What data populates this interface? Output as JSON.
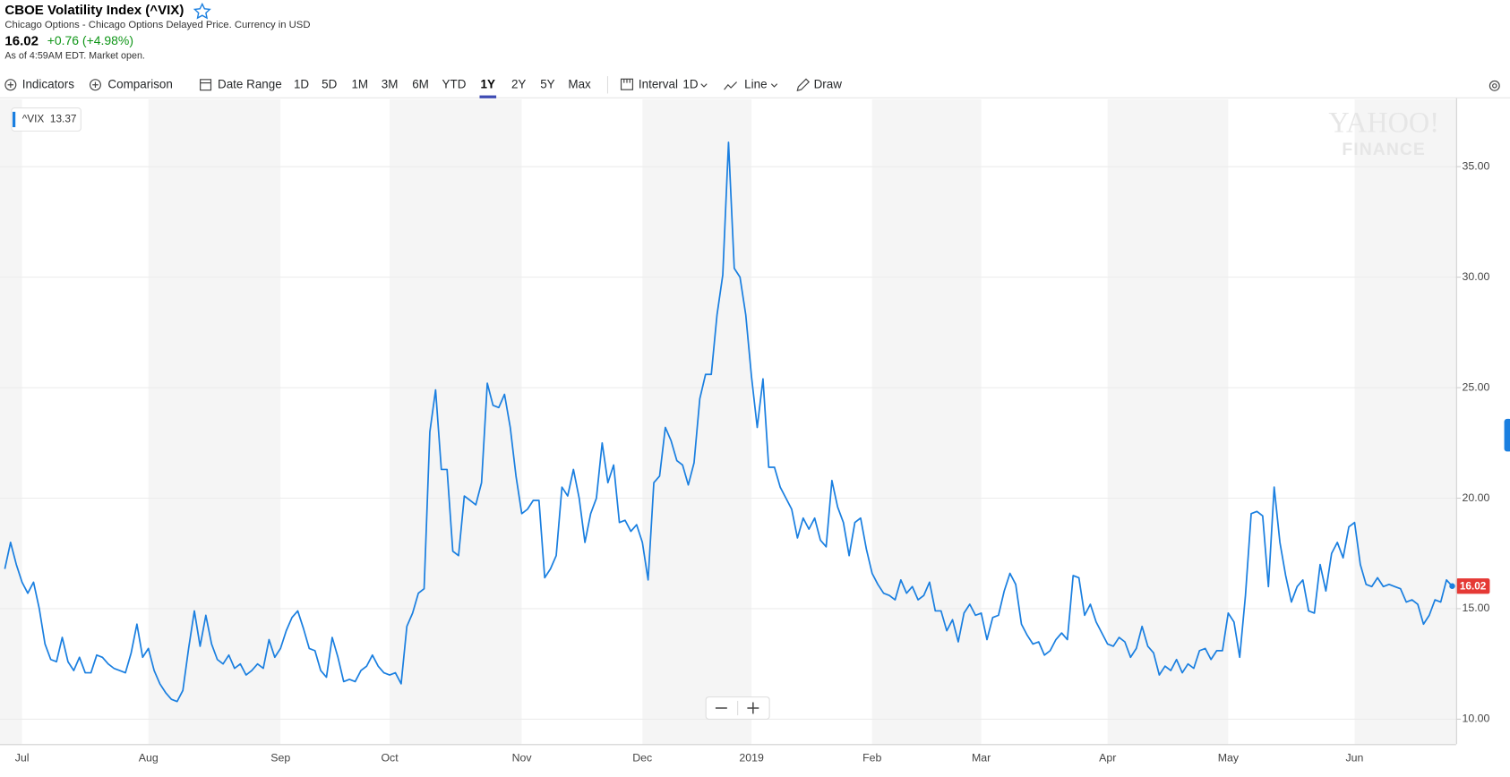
{
  "header": {
    "title": "CBOE Volatility Index (^VIX)",
    "subtitle": "Chicago Options - Chicago Options Delayed Price. Currency in USD",
    "price": "16.02",
    "change": "+0.76 (+4.98%)",
    "as_of": "As of 4:59AM EDT. Market open."
  },
  "toolbar": {
    "indicators": "Indicators",
    "comparison": "Comparison",
    "date_range": "Date Range",
    "ranges": [
      "1D",
      "5D",
      "1M",
      "3M",
      "6M",
      "YTD",
      "1Y",
      "2Y",
      "5Y",
      "Max"
    ],
    "selected": "1Y",
    "interval": "Interval",
    "interval_value": "1D",
    "line": "Line",
    "draw": "Draw"
  },
  "watermark": [
    "YAHOO!",
    "FINANCE"
  ],
  "chart_data": {
    "type": "line",
    "categories": [
      null,
      null,
      null,
      "Jul",
      null,
      null,
      null,
      null,
      null,
      null,
      null,
      null,
      null,
      null,
      null,
      null,
      null,
      null,
      null,
      null,
      null,
      null,
      null,
      null,
      null,
      "Aug",
      null,
      null,
      null,
      null,
      null,
      null,
      null,
      null,
      null,
      null,
      null,
      null,
      null,
      null,
      null,
      null,
      null,
      null,
      null,
      null,
      null,
      null,
      "Sep",
      null,
      null,
      null,
      null,
      null,
      null,
      null,
      null,
      null,
      null,
      null,
      null,
      null,
      null,
      null,
      null,
      null,
      null,
      "Oct",
      null,
      null,
      null,
      null,
      null,
      null,
      null,
      null,
      null,
      null,
      null,
      null,
      null,
      null,
      null,
      null,
      null,
      null,
      null,
      null,
      null,
      null,
      "Nov",
      null,
      null,
      null,
      null,
      null,
      null,
      null,
      null,
      null,
      null,
      null,
      null,
      null,
      null,
      null,
      null,
      null,
      null,
      null,
      null,
      "Dec",
      null,
      null,
      null,
      null,
      null,
      null,
      null,
      null,
      null,
      null,
      null,
      null,
      null,
      null,
      null,
      null,
      null,
      null,
      "2019",
      null,
      null,
      null,
      null,
      null,
      null,
      null,
      null,
      null,
      null,
      null,
      null,
      null,
      null,
      null,
      null,
      null,
      null,
      null,
      null,
      "Feb",
      null,
      null,
      null,
      null,
      null,
      null,
      null,
      null,
      null,
      null,
      null,
      null,
      null,
      null,
      null,
      null,
      null,
      null,
      "Mar",
      null,
      null,
      null,
      null,
      null,
      null,
      null,
      null,
      null,
      null,
      null,
      null,
      null,
      null,
      null,
      null,
      null,
      null,
      null,
      null,
      null,
      "Apr",
      null,
      null,
      null,
      null,
      null,
      null,
      null,
      null,
      null,
      null,
      null,
      null,
      null,
      null,
      null,
      null,
      null,
      null,
      null,
      null,
      "May",
      null,
      null,
      null,
      null,
      null,
      null,
      null,
      null,
      null,
      null,
      null,
      null,
      null,
      null,
      null,
      null,
      null,
      null,
      null,
      null,
      null,
      "Jun",
      null,
      null,
      null,
      null,
      null,
      null,
      null,
      null,
      null,
      null,
      null,
      null,
      null,
      null,
      null,
      null,
      null
    ],
    "series": [
      {
        "name": "^VIX",
        "color": "#1a7fe0",
        "values": [
          16.8,
          18.0,
          17.0,
          16.2,
          15.7,
          16.2,
          15.0,
          13.4,
          12.7,
          12.6,
          13.7,
          12.6,
          12.2,
          12.8,
          12.1,
          12.1,
          12.9,
          12.8,
          12.5,
          12.3,
          12.2,
          12.1,
          13.0,
          14.3,
          12.8,
          13.2,
          12.2,
          11.6,
          11.2,
          10.9,
          10.8,
          11.3,
          13.2,
          14.9,
          13.3,
          14.7,
          13.4,
          12.7,
          12.5,
          12.9,
          12.3,
          12.5,
          12.0,
          12.2,
          12.5,
          12.3,
          13.6,
          12.8,
          13.2,
          14.0,
          14.6,
          14.9,
          14.1,
          13.2,
          13.1,
          12.2,
          11.9,
          13.7,
          12.8,
          11.7,
          11.8,
          11.7,
          12.2,
          12.4,
          12.9,
          12.4,
          12.1,
          12.0,
          12.1,
          11.6,
          14.2,
          14.8,
          15.7,
          15.9,
          23.0,
          24.9,
          21.3,
          21.3,
          17.6,
          17.4,
          20.1,
          19.9,
          19.7,
          20.7,
          25.2,
          24.2,
          24.1,
          24.7,
          23.2,
          21.0,
          19.3,
          19.5,
          19.9,
          19.9,
          16.4,
          16.8,
          17.4,
          20.5,
          20.1,
          21.3,
          20.0,
          18.0,
          19.3,
          20.0,
          22.5,
          20.7,
          21.5,
          18.9,
          19.0,
          18.5,
          18.8,
          18.0,
          16.3,
          20.7,
          21.0,
          23.2,
          22.6,
          21.7,
          21.5,
          20.6,
          21.6,
          24.5,
          25.6,
          25.6,
          28.3,
          30.1,
          36.1,
          30.4,
          30.0,
          28.3,
          25.5,
          23.2,
          25.4,
          21.4,
          21.4,
          20.5,
          20.0,
          19.5,
          18.2,
          19.1,
          18.6,
          19.1,
          18.1,
          17.8,
          20.8,
          19.6,
          18.9,
          17.4,
          18.9,
          19.1,
          17.7,
          16.6,
          16.1,
          15.7,
          15.6,
          15.4,
          16.3,
          15.7,
          16.0,
          15.4,
          15.6,
          16.2,
          14.9,
          14.9,
          14.0,
          14.5,
          13.5,
          14.8,
          15.2,
          14.7,
          14.8,
          13.6,
          14.6,
          14.7,
          15.8,
          16.6,
          16.1,
          14.3,
          13.8,
          13.4,
          13.5,
          12.9,
          13.1,
          13.6,
          13.9,
          13.6,
          16.5,
          16.4,
          14.7,
          15.2,
          14.4,
          13.9,
          13.4,
          13.3,
          13.7,
          13.5,
          12.8,
          13.2,
          14.2,
          13.3,
          13.0,
          12.0,
          12.4,
          12.2,
          12.7,
          12.1,
          12.5,
          12.3,
          13.1,
          13.2,
          12.7,
          13.1,
          13.1,
          14.8,
          14.4,
          12.8,
          15.6,
          19.3,
          19.4,
          19.2,
          16.0,
          20.5,
          18.0,
          16.5,
          15.3,
          16.0,
          16.3,
          14.9,
          14.8,
          17.0,
          15.8,
          17.5,
          18.0,
          17.3,
          18.7,
          18.9,
          17.0,
          16.1,
          16.0,
          16.4,
          16.0,
          16.1,
          16.0,
          15.9,
          15.3,
          15.4,
          15.2,
          14.3,
          14.7,
          15.4,
          15.3,
          16.3,
          16.02
        ]
      }
    ],
    "tooltip_value": 13.37,
    "last_price_color": "#e53935",
    "ylim": [
      8.87,
      38.05
    ],
    "yticks": [
      {
        "value": 10,
        "label": "10.00"
      },
      {
        "value": 15,
        "label": "15.00"
      },
      {
        "value": 20,
        "label": "20.00"
      },
      {
        "value": 25,
        "label": "25.00"
      },
      {
        "value": 30,
        "label": "30.00"
      },
      {
        "value": 35,
        "label": "35.00"
      }
    ],
    "grid": true
  }
}
